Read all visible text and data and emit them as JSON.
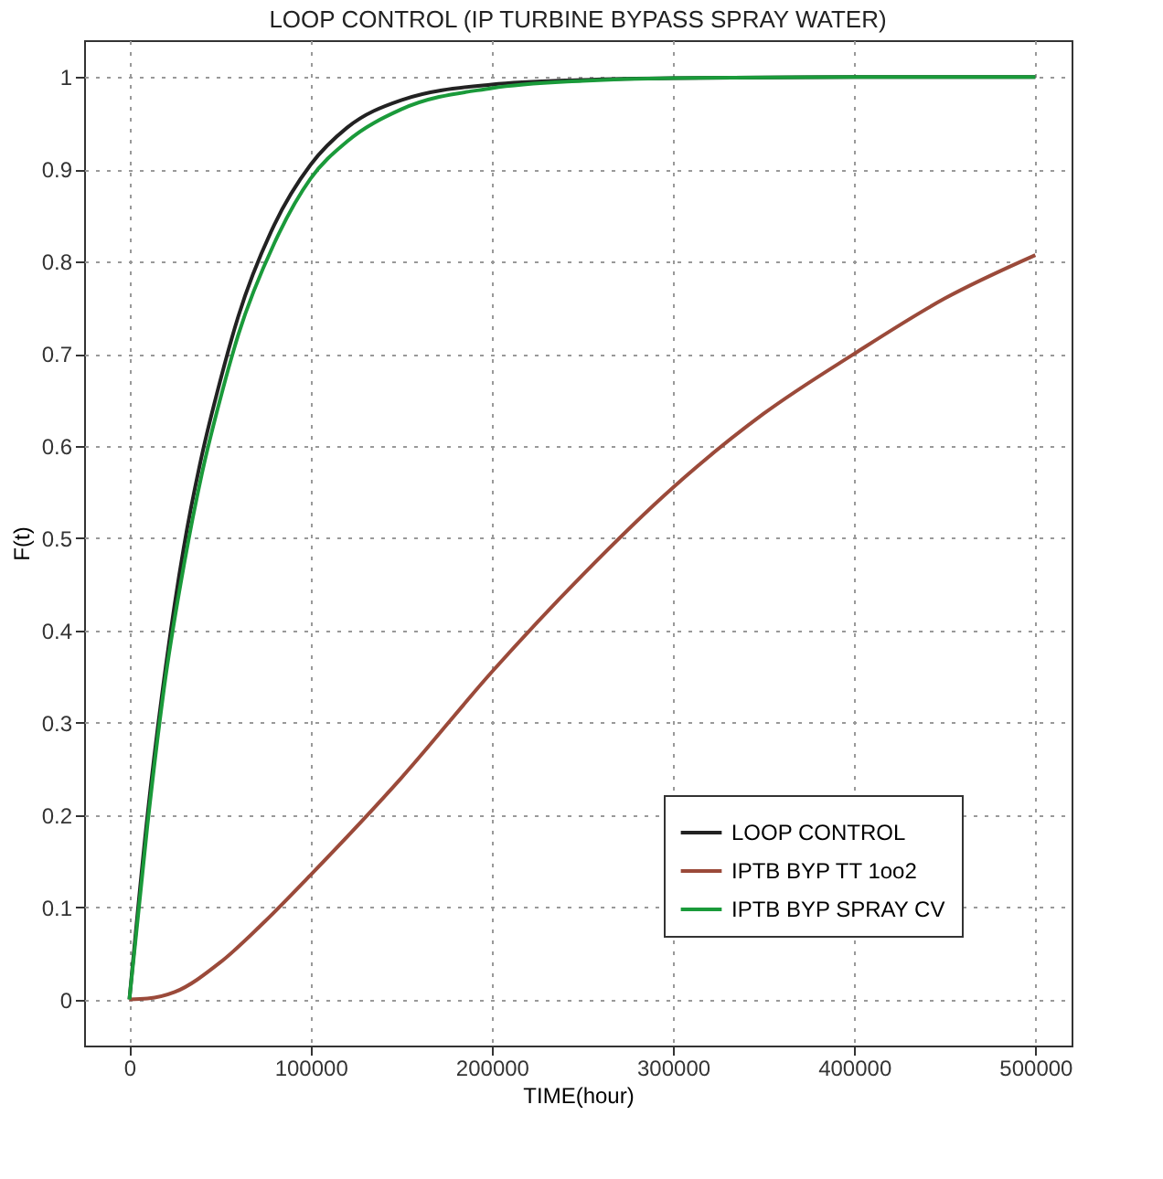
{
  "chart_data": {
    "type": "line",
    "title": "LOOP CONTROL (IP TURBINE BYPASS SPRAY WATER)",
    "xlabel": "TIME(hour)",
    "ylabel": "F(t)",
    "xlim": [
      -25000,
      520000
    ],
    "xticks": [
      0,
      100000,
      200000,
      300000,
      400000,
      500000
    ],
    "ylim": [
      -0.05,
      1.04
    ],
    "yticks": [
      0,
      0.1,
      0.2,
      0.3,
      0.4,
      0.5,
      0.6,
      0.7,
      0.8,
      0.9,
      1
    ],
    "grid": true,
    "legend": "bottom right",
    "line_style": "solid",
    "series": [
      {
        "name": "LOOP CONTROL",
        "color": "#222222",
        "x": [
          0,
          10000,
          20000,
          30000,
          40000,
          50000,
          60000,
          80000,
          100000,
          120000,
          150000,
          200000,
          250000,
          300000,
          400000,
          500000
        ],
        "values": [
          0,
          0.2,
          0.36,
          0.49,
          0.59,
          0.67,
          0.74,
          0.84,
          0.905,
          0.945,
          0.975,
          0.992,
          0.997,
          0.999,
          1,
          1
        ]
      },
      {
        "name": "IPTB BYP TT 1oo2",
        "color": "#9b4a3a",
        "x": [
          0,
          10000,
          25000,
          50000,
          75000,
          100000,
          150000,
          200000,
          250000,
          300000,
          350000,
          400000,
          450000,
          500000
        ],
        "values": [
          0,
          0.001,
          0.008,
          0.04,
          0.085,
          0.135,
          0.24,
          0.355,
          0.46,
          0.555,
          0.635,
          0.7,
          0.76,
          0.807
        ]
      },
      {
        "name": "IPTB BYP SPRAY CV",
        "color": "#1a9a3a",
        "x": [
          0,
          10000,
          20000,
          30000,
          40000,
          50000,
          60000,
          80000,
          100000,
          120000,
          150000,
          200000,
          250000,
          300000,
          400000,
          500000
        ],
        "values": [
          0,
          0.19,
          0.35,
          0.47,
          0.57,
          0.65,
          0.72,
          0.82,
          0.89,
          0.93,
          0.965,
          0.988,
          0.996,
          0.999,
          1,
          1
        ]
      }
    ]
  }
}
